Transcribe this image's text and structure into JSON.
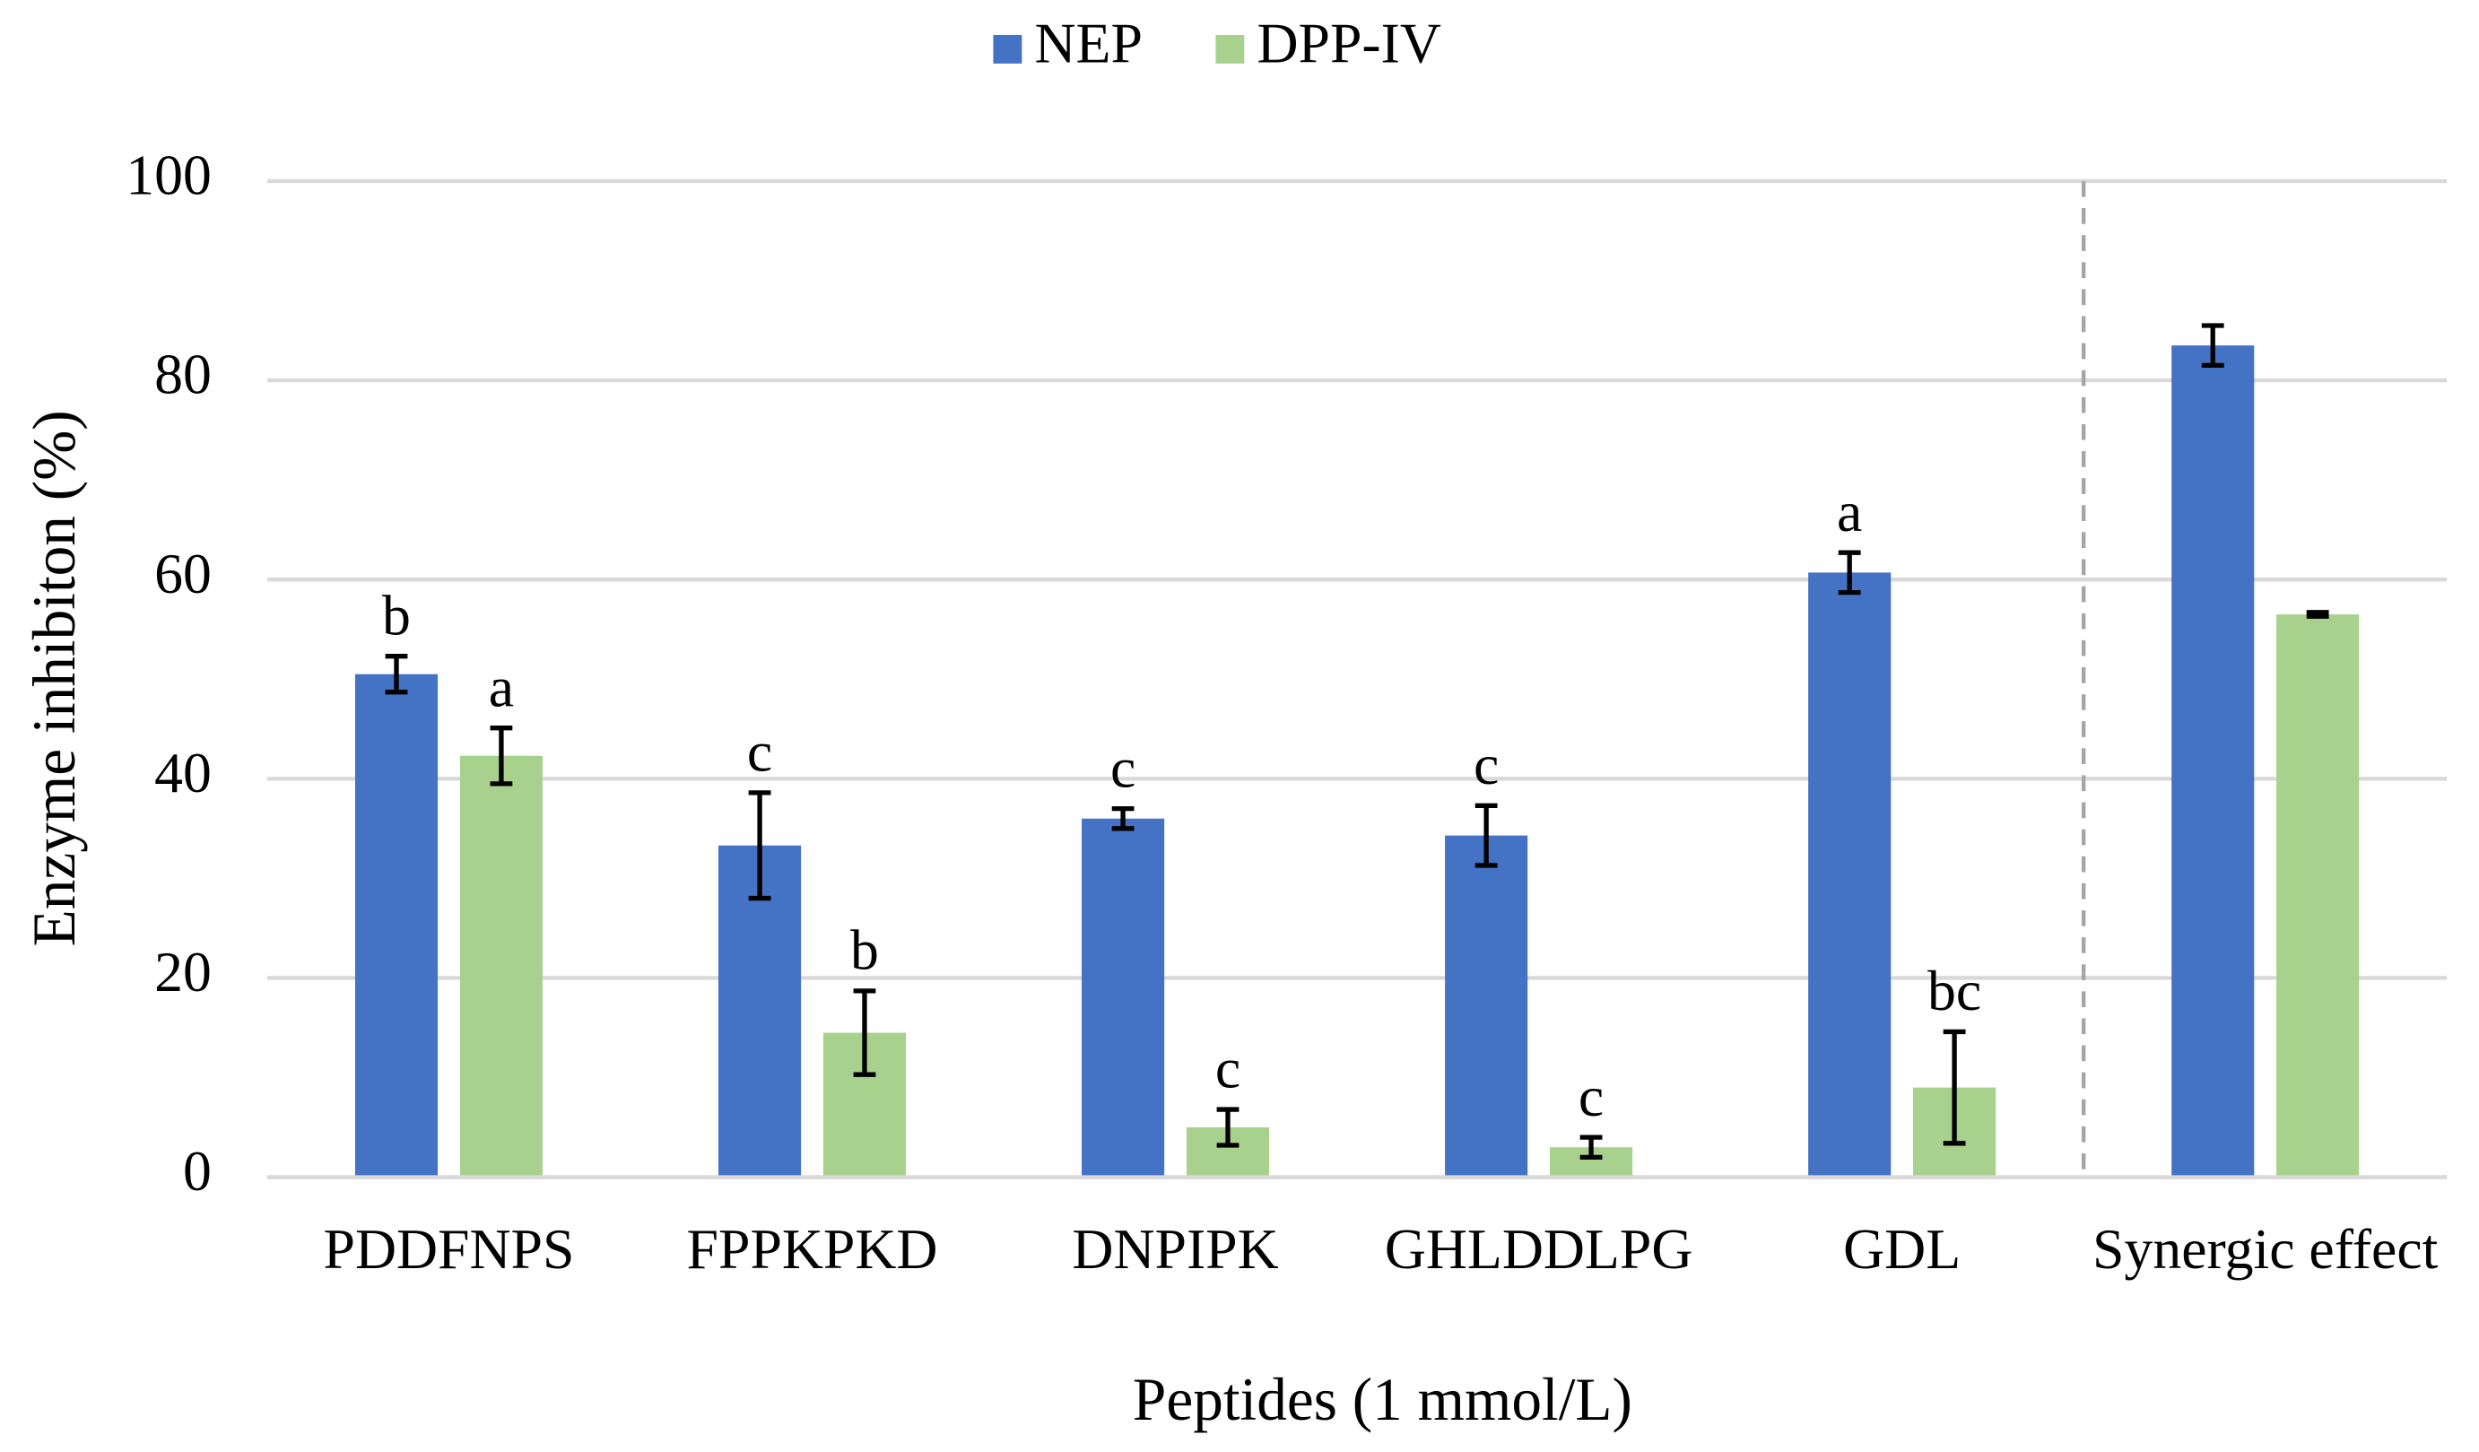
{
  "chart_data": {
    "type": "bar",
    "y_label": "Enzyme inhibiton (%)",
    "x_label": "Peptides (1 mmol/L)",
    "categories": [
      "PDDFNPS",
      "FPPKPKD",
      "DNPIPK",
      "GHLDDLPG",
      "GDL",
      "Synergic effect"
    ],
    "series": [
      {
        "name": "NEP",
        "color": "#4472c4",
        "values": [
          50.5,
          33.3,
          36,
          34.3,
          60.7,
          83.5
        ],
        "errors": [
          1.8,
          5.3,
          1,
          3,
          2,
          2
        ],
        "letters": [
          "b",
          "c",
          "c",
          "c",
          "a",
          null
        ]
      },
      {
        "name": "DPP-IV",
        "color": "#a9d18e",
        "values": [
          42.3,
          14.5,
          5,
          3,
          9,
          56.5
        ],
        "errors": [
          2.8,
          4.2,
          1.8,
          1,
          5.6,
          0.2
        ],
        "letters": [
          "a",
          "b",
          "c",
          "c",
          "bc",
          null
        ]
      }
    ],
    "ylim": [
      0,
      100
    ],
    "yticks": [
      0,
      20,
      40,
      60,
      80,
      100
    ],
    "grid": true,
    "legend": "top"
  }
}
